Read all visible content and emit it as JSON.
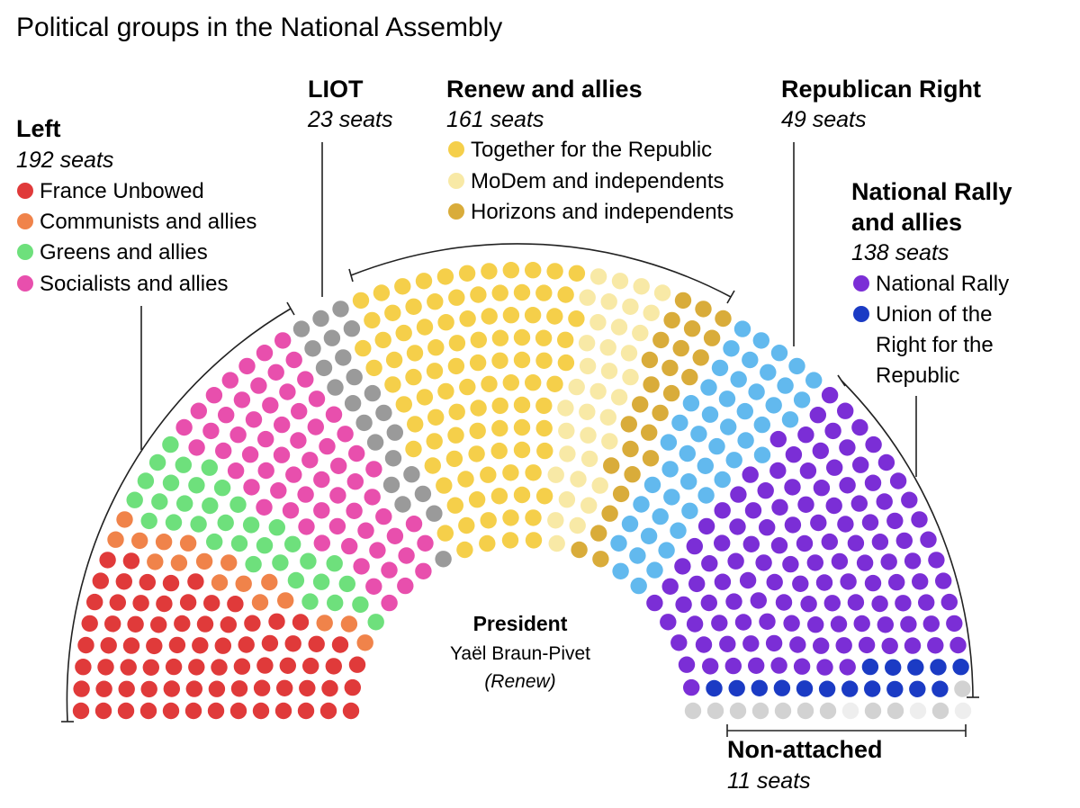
{
  "chart_data": {
    "type": "parliament",
    "title": "Political groups in the National Assembly",
    "total_seats": 577,
    "groups": [
      {
        "name": "Left",
        "seats_label": "192 seats",
        "seats": 192,
        "members": [
          {
            "name": "France Unbowed",
            "color": "#e03a3a",
            "seats": 75
          },
          {
            "name": "Communists and allies",
            "color": "#f0834a",
            "seats": 17
          },
          {
            "name": "Greens and allies",
            "color": "#6ee07c",
            "seats": 34
          },
          {
            "name": "Socialists and allies",
            "color": "#e84fad",
            "seats": 66
          }
        ]
      },
      {
        "name": "LIOT",
        "seats_label": "23 seats",
        "seats": 23,
        "members": [
          {
            "name": "LIOT",
            "color": "#9a9a9a",
            "seats": 23
          }
        ]
      },
      {
        "name": "Renew and allies",
        "seats_label": "161 seats",
        "seats": 161,
        "members": [
          {
            "name": "Together for the Republic",
            "color": "#f5cf4a",
            "seats": 98
          },
          {
            "name": "MoDem and independents",
            "color": "#f8e9a6",
            "seats": 36
          },
          {
            "name": "Horizons and independents",
            "color": "#d9ac3a",
            "seats": 27
          }
        ]
      },
      {
        "name": "Republican Right",
        "seats_label": "49 seats",
        "seats": 49,
        "members": [
          {
            "name": "Republican Right",
            "color": "#62b9ee",
            "seats": 49
          }
        ]
      },
      {
        "name": "National Rally and allies",
        "seats_label": "138 seats",
        "seats": 138,
        "members": [
          {
            "name": "National Rally",
            "color": "#7b2ed6",
            "seats": 122
          },
          {
            "name": "Union of the Right for the Republic",
            "color": "#1b3bc4",
            "seats": 16
          }
        ]
      },
      {
        "name": "Non-attached",
        "seats_label": "11 seats",
        "seats": 11,
        "members": [
          {
            "name": "Non-attached",
            "color": "#d2d2d2",
            "seats": 11
          }
        ]
      }
    ],
    "vacant_color": "#eeeeee",
    "president": {
      "label": "President",
      "name": "Yaël Braun-Pivet",
      "party": "(Renew)"
    }
  },
  "legend_text": {
    "left_name": "Left",
    "left_seats": "192 seats",
    "left_items": [
      "France Unbowed",
      "Communists and allies",
      "Greens and allies",
      "Socialists and allies"
    ],
    "liot_name": "LIOT",
    "liot_seats": "23 seats",
    "renew_name": "Renew and allies",
    "renew_seats": "161 seats",
    "renew_items": [
      "Together for the Republic",
      "MoDem and independents",
      "Horizons and independents"
    ],
    "lr_name": "Republican Right",
    "lr_seats": "49 seats",
    "rn_name_1": "National Rally",
    "rn_name_2": "and allies",
    "rn_seats": "138 seats",
    "rn_items": [
      "National Rally",
      "Union of the",
      "Right for the",
      "Republic"
    ],
    "ni_name": "Non-attached",
    "ni_seats": "11 seats"
  }
}
